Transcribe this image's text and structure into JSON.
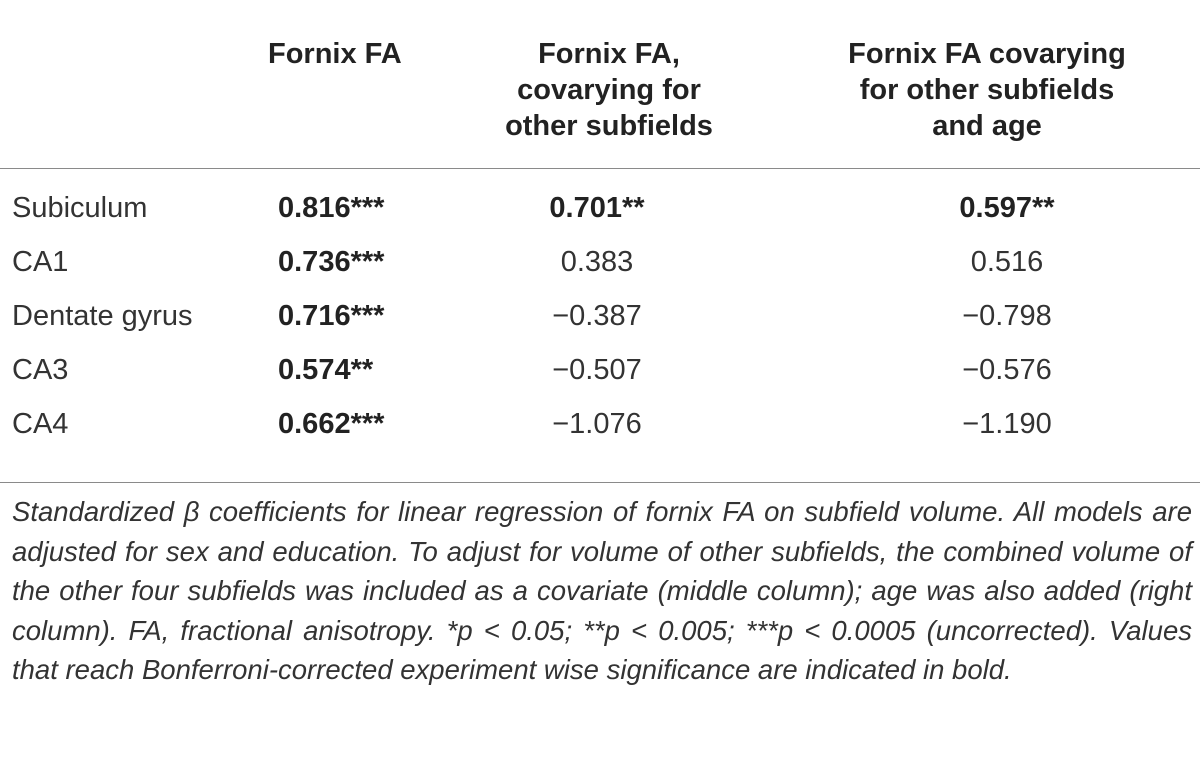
{
  "table": {
    "headers": [
      "",
      "Fornix FA",
      "Fornix FA,\ncovarying for\nother subfields",
      "Fornix FA covarying\nfor other subfields\nand age"
    ],
    "rows": [
      {
        "label": "Subiculum",
        "values": [
          "0.816***",
          "0.701**",
          "0.597**"
        ],
        "bold": [
          true,
          true,
          true
        ]
      },
      {
        "label": "CA1",
        "values": [
          "0.736***",
          "0.383",
          "0.516"
        ],
        "bold": [
          true,
          false,
          false
        ]
      },
      {
        "label": "Dentate gyrus",
        "values": [
          "0.716***",
          "−0.387",
          "−0.798"
        ],
        "bold": [
          true,
          false,
          false
        ]
      },
      {
        "label": "CA3",
        "values": [
          "0.574**",
          "−0.507",
          "−0.576"
        ],
        "bold": [
          true,
          false,
          false
        ]
      },
      {
        "label": "CA4",
        "values": [
          "0.662***",
          "−1.076",
          "−1.190"
        ],
        "bold": [
          true,
          false,
          false
        ]
      }
    ]
  },
  "footnote": "Standardized β coefficients for linear regression of fornix FA on subfield volume. All models are adjusted for sex and education. To adjust for volume of other subfields, the combined volume of the other four subfields was included as a covariate (middle column); age was also added (right column). FA, fractional anisotropy. *p < 0.05; **p < 0.005; ***p < 0.0005 (uncorrected). Values that reach Bonferroni-corrected experiment wise significance are indicated in bold."
}
